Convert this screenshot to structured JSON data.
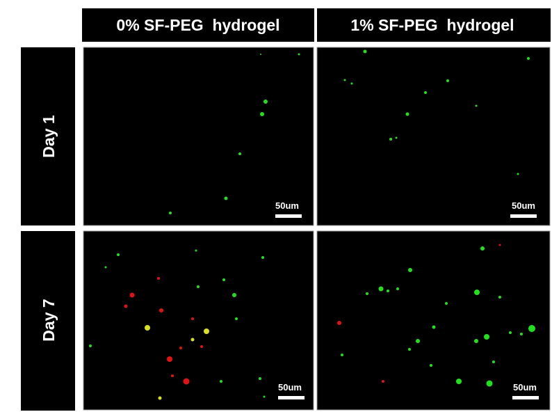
{
  "columns": [
    "0% SF-PEG  hydrogel",
    "1% SF-PEG  hydrogel"
  ],
  "rows": [
    "Day 1",
    "Day 7"
  ],
  "scale_bars": [
    "50um",
    "50um",
    "50um",
    "50um"
  ]
}
